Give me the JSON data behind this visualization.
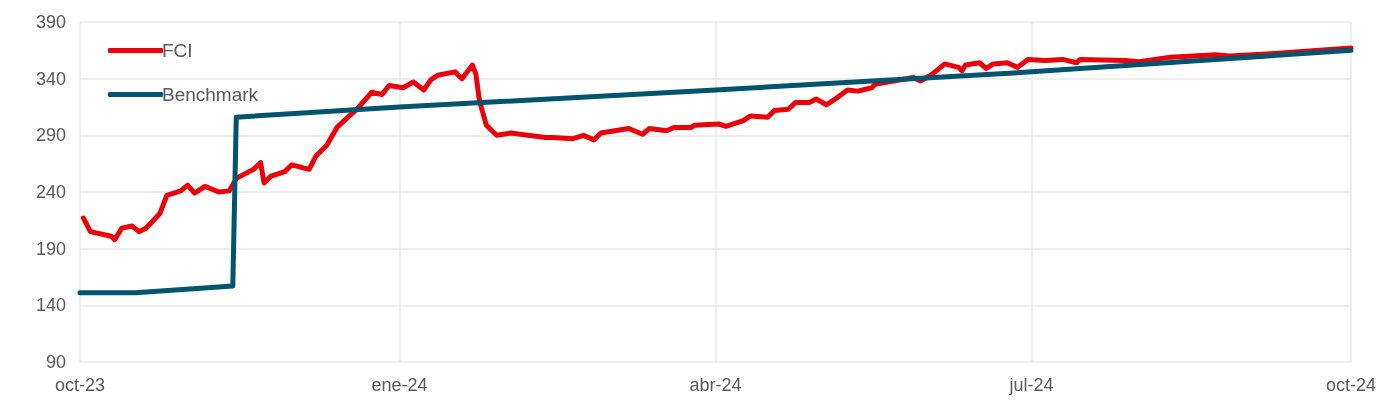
{
  "chart_data": {
    "type": "line",
    "xlim": [
      "2023-10-01",
      "2024-10-01"
    ],
    "xticks": [
      {
        "value": "2023-10-01",
        "label": "oct-23"
      },
      {
        "value": "2024-01-01",
        "label": "ene-24"
      },
      {
        "value": "2024-04-01",
        "label": "abr-24"
      },
      {
        "value": "2024-07-01",
        "label": "jul-24"
      },
      {
        "value": "2024-10-01",
        "label": "oct-24"
      }
    ],
    "ylim": [
      90,
      390
    ],
    "yticks": [
      90,
      140,
      190,
      240,
      290,
      340,
      390
    ],
    "grid": true,
    "legend": "top left",
    "marker": "none",
    "line_style": "solid",
    "series": [
      {
        "name": "FCI",
        "color": "#e8000b",
        "x": [
          "2023-10-02",
          "2023-10-04",
          "2023-10-10",
          "2023-10-11",
          "2023-10-13",
          "2023-10-16",
          "2023-10-18",
          "2023-10-20",
          "2023-10-24",
          "2023-10-26",
          "2023-10-30",
          "2023-11-01",
          "2023-11-03",
          "2023-11-06",
          "2023-11-10",
          "2023-11-13",
          "2023-11-15",
          "2023-11-20",
          "2023-11-22",
          "2023-11-23",
          "2023-11-25",
          "2023-11-29",
          "2023-12-01",
          "2023-12-06",
          "2023-12-08",
          "2023-12-11",
          "2023-12-14",
          "2023-12-20",
          "2023-12-24",
          "2023-12-27",
          "2023-12-29",
          "2024-01-02",
          "2024-01-05",
          "2024-01-08",
          "2024-01-10",
          "2024-01-12",
          "2024-01-17",
          "2024-01-19",
          "2024-01-22",
          "2024-01-23",
          "2024-01-24",
          "2024-01-26",
          "2024-01-29",
          "2024-02-02",
          "2024-02-07",
          "2024-02-12",
          "2024-02-14",
          "2024-02-20",
          "2024-02-23",
          "2024-02-26",
          "2024-02-28",
          "2024-03-07",
          "2024-03-11",
          "2024-03-13",
          "2024-03-18",
          "2024-03-20",
          "2024-03-25",
          "2024-03-26",
          "2024-04-02",
          "2024-04-04",
          "2024-04-09",
          "2024-04-11",
          "2024-04-16",
          "2024-04-18",
          "2024-04-22",
          "2024-04-24",
          "2024-04-28",
          "2024-04-30",
          "2024-05-03",
          "2024-05-05",
          "2024-05-09",
          "2024-05-12",
          "2024-05-16",
          "2024-05-17",
          "2024-05-28",
          "2024-05-30",
          "2024-06-02",
          "2024-06-04",
          "2024-06-06",
          "2024-06-10",
          "2024-06-11",
          "2024-06-12",
          "2024-06-16",
          "2024-06-18",
          "2024-06-20",
          "2024-06-24",
          "2024-06-27",
          "2024-06-30",
          "2024-07-05",
          "2024-07-10",
          "2024-07-14",
          "2024-07-15",
          "2024-07-28",
          "2024-08-01",
          "2024-08-10",
          "2024-08-23",
          "2024-08-27",
          "2024-09-08",
          "2024-09-22",
          "2024-10-01"
        ],
        "values": [
          217,
          205,
          201,
          198,
          208,
          210,
          205,
          208,
          221,
          237,
          241,
          246,
          239,
          245,
          240,
          241,
          252,
          260,
          266,
          248,
          254,
          258,
          264,
          260,
          272,
          281,
          297,
          314,
          328,
          326,
          334,
          332,
          337,
          330,
          339,
          343,
          346,
          340,
          352,
          344,
          321,
          299,
          290,
          292,
          290,
          288,
          288,
          287,
          290,
          286,
          292,
          296,
          291,
          296,
          294,
          297,
          297,
          299,
          300,
          298,
          303,
          307,
          306,
          312,
          313,
          319,
          319,
          322,
          317,
          321,
          330,
          329,
          332,
          335,
          341,
          338,
          343,
          348,
          353,
          350,
          347,
          352,
          354,
          349,
          353,
          354,
          350,
          357,
          356,
          357,
          354,
          357,
          356,
          355,
          359,
          361,
          360,
          362,
          365,
          367
        ]
      },
      {
        "name": "Benchmark",
        "color": "#00546e",
        "x": [
          "2023-10-01",
          "2023-10-17",
          "2023-11-14",
          "2023-11-15",
          "2024-01-01",
          "2024-04-01",
          "2024-07-01",
          "2024-10-01"
        ],
        "values": [
          151,
          151,
          157,
          306,
          315,
          330,
          346,
          365
        ]
      }
    ]
  }
}
